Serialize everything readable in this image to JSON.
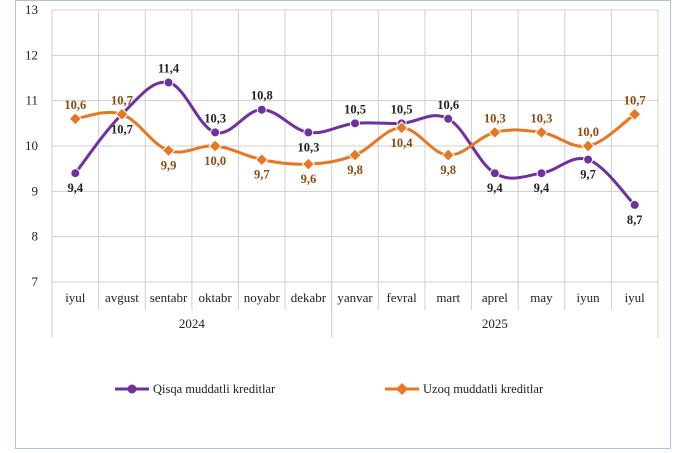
{
  "chart_data": {
    "type": "line",
    "categories": [
      "iyul",
      "avgust",
      "sentabr",
      "oktabr",
      "noyabr",
      "dekabr",
      "yanvar",
      "fevral",
      "mart",
      "aprel",
      "may",
      "iyun",
      "iyul"
    ],
    "year_groups": [
      {
        "label": "2024",
        "start": 0,
        "end": 5
      },
      {
        "label": "2025",
        "start": 6,
        "end": 12
      }
    ],
    "ylim": [
      7,
      13
    ],
    "yticks": [
      "7",
      "8",
      "9",
      "10",
      "11",
      "12",
      "13"
    ],
    "grid": true,
    "legend_position": "bottom",
    "series": [
      {
        "name": "Qisqa muddatli kreditlar",
        "color": "#7030a0",
        "values": [
          9.4,
          10.7,
          11.4,
          10.3,
          10.8,
          10.3,
          10.5,
          10.5,
          10.6,
          9.4,
          9.4,
          9.7,
          8.7
        ],
        "labels": [
          "9,4",
          "10,7",
          "11,4",
          "10,3",
          "10,8",
          "10,3",
          "10,5",
          "10,5",
          "10,6",
          "9,4",
          "9,4",
          "9,7",
          "8,7"
        ],
        "label_pos": [
          "below",
          "below",
          "above",
          "above",
          "above",
          "below",
          "above",
          "above",
          "above",
          "below",
          "below",
          "below",
          "below"
        ]
      },
      {
        "name": "Uzoq muddatli kreditlar",
        "color": "#e87722",
        "values": [
          10.6,
          10.7,
          9.9,
          10.0,
          9.7,
          9.6,
          9.8,
          10.4,
          9.8,
          10.3,
          10.3,
          10.0,
          10.7
        ],
        "labels": [
          "10,6",
          "10,7",
          "9,9",
          "10,0",
          "9,7",
          "9,6",
          "9,8",
          "10,4",
          "9,8",
          "10,3",
          "10,3",
          "10,0",
          "10,7"
        ],
        "label_pos": [
          "above",
          "above",
          "below",
          "below",
          "below",
          "below",
          "below",
          "below",
          "below",
          "above",
          "above",
          "above",
          "above"
        ]
      }
    ]
  }
}
